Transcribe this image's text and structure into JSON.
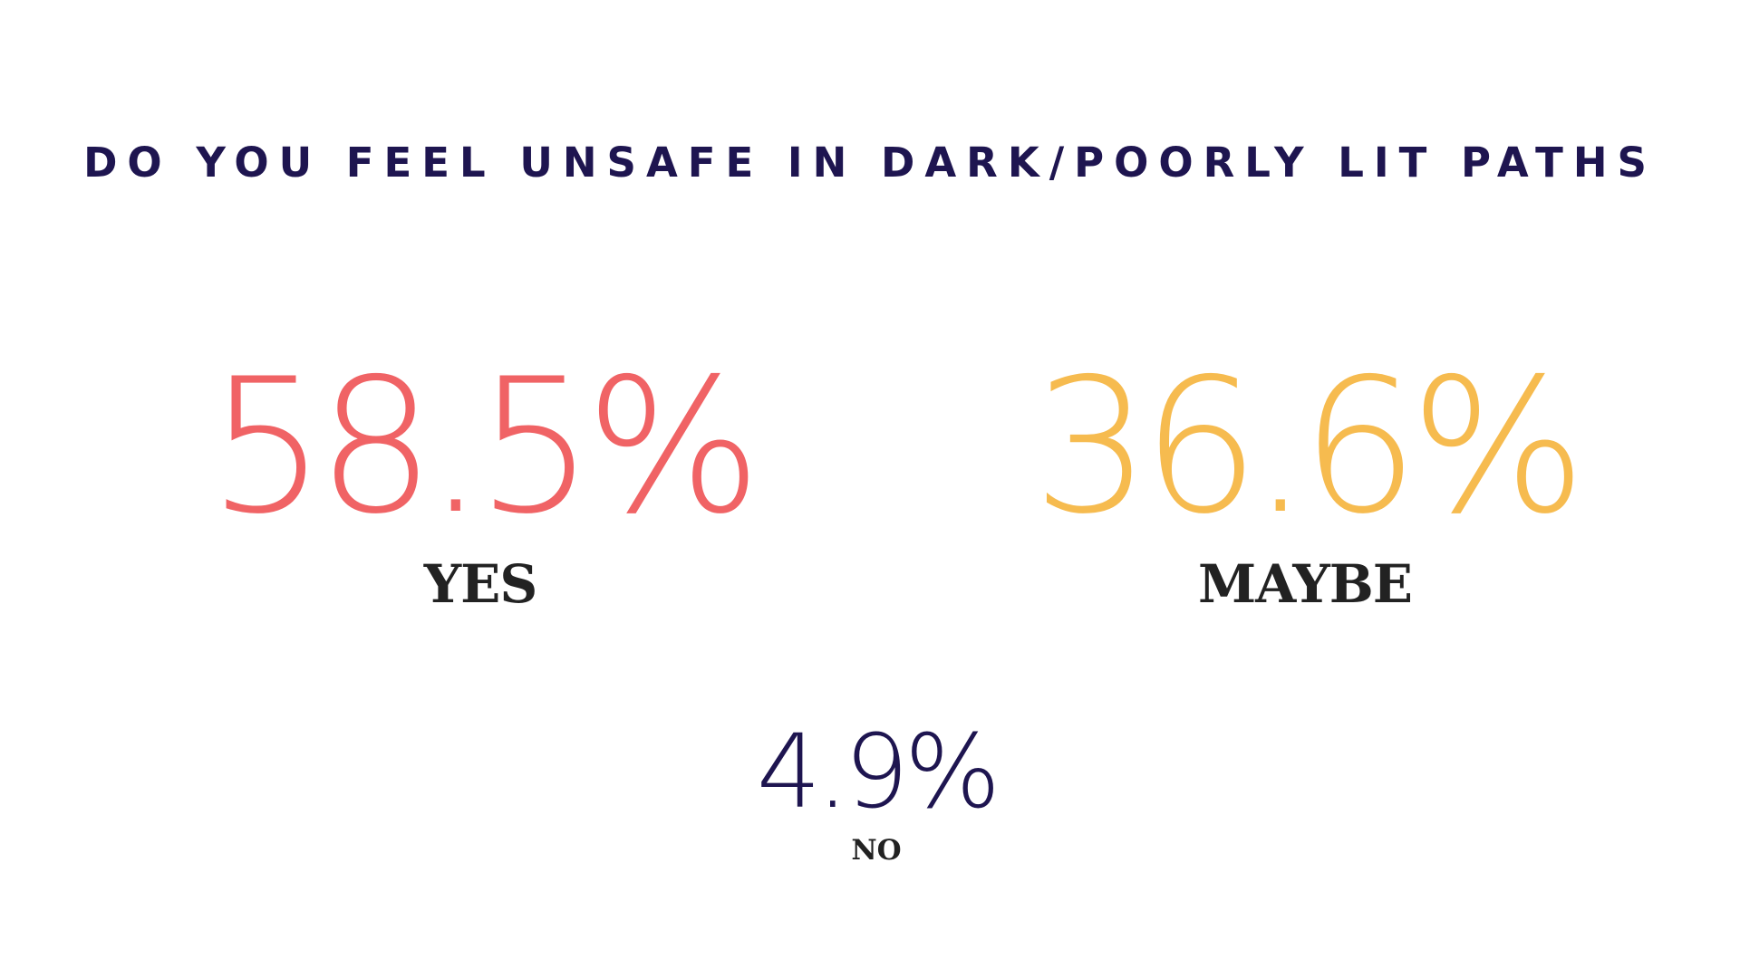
{
  "title": "DO YOU FEEL UNSAFE IN DARK/POORLY LIT PATHS",
  "colors": {
    "background": "#ffffff",
    "title": "#1e1550",
    "yes": "#f06365",
    "maybe": "#f6bb4f",
    "no": "#1e1550",
    "label": "#222222"
  },
  "stats": {
    "yes": {
      "value": "58.5%",
      "label": "YES"
    },
    "maybe": {
      "value": "36.6%",
      "label": "MAYBE"
    },
    "no": {
      "value": "4.9%",
      "label": "NO"
    }
  },
  "chart_data": {
    "type": "table",
    "title": "DO YOU FEEL UNSAFE IN DARK/POORLY LIT PATHS",
    "categories": [
      "YES",
      "MAYBE",
      "NO"
    ],
    "values": [
      58.5,
      36.6,
      4.9
    ],
    "unit": "%"
  }
}
